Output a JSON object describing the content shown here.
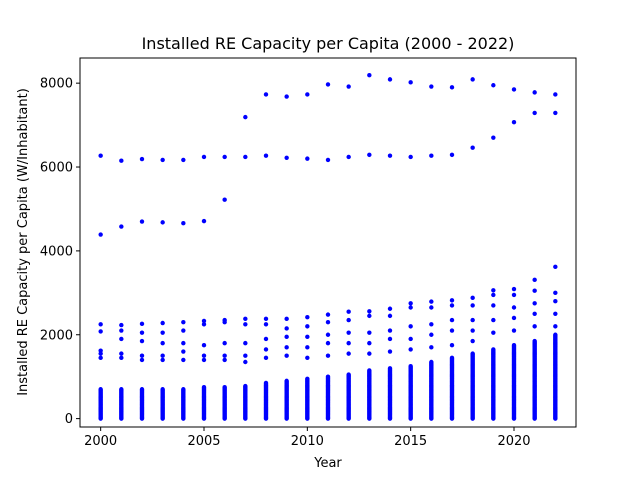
{
  "chart_data": {
    "type": "scatter",
    "title": "Installed RE Capacity per Capita (2000 - 2022)",
    "xlabel": "Year",
    "ylabel": "Installed RE Capacity per Capita (W/Inhabitant)",
    "xlim": [
      1999,
      2023
    ],
    "ylim": [
      -200,
      8600
    ],
    "xticks": [
      2000,
      2005,
      2010,
      2015,
      2020
    ],
    "yticks": [
      0,
      2000,
      4000,
      6000,
      8000
    ],
    "grid": false,
    "marker_color": "#0000ff",
    "outlier_points": [
      {
        "x": 2000,
        "y": 6270
      },
      {
        "x": 2001,
        "y": 6150
      },
      {
        "x": 2002,
        "y": 6190
      },
      {
        "x": 2003,
        "y": 6170
      },
      {
        "x": 2004,
        "y": 6170
      },
      {
        "x": 2005,
        "y": 6240
      },
      {
        "x": 2006,
        "y": 6240
      },
      {
        "x": 2007,
        "y": 6240
      },
      {
        "x": 2008,
        "y": 6270
      },
      {
        "x": 2009,
        "y": 6220
      },
      {
        "x": 2010,
        "y": 6200
      },
      {
        "x": 2011,
        "y": 6170
      },
      {
        "x": 2012,
        "y": 6240
      },
      {
        "x": 2013,
        "y": 6290
      },
      {
        "x": 2014,
        "y": 6270
      },
      {
        "x": 2015,
        "y": 6240
      },
      {
        "x": 2016,
        "y": 6270
      },
      {
        "x": 2017,
        "y": 6290
      },
      {
        "x": 2018,
        "y": 6460
      },
      {
        "x": 2019,
        "y": 6700
      },
      {
        "x": 2020,
        "y": 7070
      },
      {
        "x": 2021,
        "y": 7290
      },
      {
        "x": 2022,
        "y": 7290
      },
      {
        "x": 2000,
        "y": 4390
      },
      {
        "x": 2001,
        "y": 4580
      },
      {
        "x": 2002,
        "y": 4700
      },
      {
        "x": 2003,
        "y": 4680
      },
      {
        "x": 2004,
        "y": 4660
      },
      {
        "x": 2005,
        "y": 4710
      },
      {
        "x": 2006,
        "y": 5220
      },
      {
        "x": 2007,
        "y": 7190
      },
      {
        "x": 2008,
        "y": 7730
      },
      {
        "x": 2009,
        "y": 7680
      },
      {
        "x": 2010,
        "y": 7730
      },
      {
        "x": 2011,
        "y": 7970
      },
      {
        "x": 2012,
        "y": 7920
      },
      {
        "x": 2013,
        "y": 8190
      },
      {
        "x": 2014,
        "y": 8090
      },
      {
        "x": 2015,
        "y": 8020
      },
      {
        "x": 2016,
        "y": 7920
      },
      {
        "x": 2017,
        "y": 7900
      },
      {
        "x": 2018,
        "y": 8090
      },
      {
        "x": 2019,
        "y": 7950
      },
      {
        "x": 2020,
        "y": 7850
      },
      {
        "x": 2021,
        "y": 7780
      },
      {
        "x": 2022,
        "y": 7730
      }
    ],
    "max_per_year": [
      {
        "x": 2000,
        "y": 2250
      },
      {
        "x": 2001,
        "y": 2230
      },
      {
        "x": 2002,
        "y": 2260
      },
      {
        "x": 2003,
        "y": 2280
      },
      {
        "x": 2004,
        "y": 2300
      },
      {
        "x": 2005,
        "y": 2330
      },
      {
        "x": 2006,
        "y": 2350
      },
      {
        "x": 2007,
        "y": 2380
      },
      {
        "x": 2008,
        "y": 2380
      },
      {
        "x": 2009,
        "y": 2380
      },
      {
        "x": 2010,
        "y": 2420
      },
      {
        "x": 2011,
        "y": 2480
      },
      {
        "x": 2012,
        "y": 2550
      },
      {
        "x": 2013,
        "y": 2560
      },
      {
        "x": 2014,
        "y": 2620
      },
      {
        "x": 2015,
        "y": 2750
      },
      {
        "x": 2016,
        "y": 2790
      },
      {
        "x": 2017,
        "y": 2820
      },
      {
        "x": 2018,
        "y": 2880
      },
      {
        "x": 2019,
        "y": 3060
      },
      {
        "x": 2020,
        "y": 3090
      },
      {
        "x": 2021,
        "y": 3310
      },
      {
        "x": 2022,
        "y": 3620
      }
    ],
    "dense_cluster_top_per_year": [
      {
        "x": 2000,
        "y": 700
      },
      {
        "x": 2001,
        "y": 700
      },
      {
        "x": 2002,
        "y": 700
      },
      {
        "x": 2003,
        "y": 720
      },
      {
        "x": 2004,
        "y": 720
      },
      {
        "x": 2005,
        "y": 760
      },
      {
        "x": 2006,
        "y": 760
      },
      {
        "x": 2007,
        "y": 780
      },
      {
        "x": 2008,
        "y": 850
      },
      {
        "x": 2009,
        "y": 900
      },
      {
        "x": 2010,
        "y": 950
      },
      {
        "x": 2011,
        "y": 1000
      },
      {
        "x": 2012,
        "y": 1050
      },
      {
        "x": 2013,
        "y": 1150
      },
      {
        "x": 2014,
        "y": 1200
      },
      {
        "x": 2015,
        "y": 1250
      },
      {
        "x": 2016,
        "y": 1350
      },
      {
        "x": 2017,
        "y": 1450
      },
      {
        "x": 2018,
        "y": 1550
      },
      {
        "x": 2019,
        "y": 1650
      },
      {
        "x": 2020,
        "y": 1750
      },
      {
        "x": 2021,
        "y": 1850
      },
      {
        "x": 2022,
        "y": 2000
      }
    ],
    "mid_band_per_year": [
      {
        "x": 2000,
        "y": [
          1450,
          1550,
          1620,
          2080
        ]
      },
      {
        "x": 2001,
        "y": [
          1450,
          1550,
          1900,
          2100
        ]
      },
      {
        "x": 2002,
        "y": [
          1400,
          1500,
          1850,
          2050
        ]
      },
      {
        "x": 2003,
        "y": [
          1400,
          1500,
          1800,
          2050
        ]
      },
      {
        "x": 2004,
        "y": [
          1400,
          1600,
          1800,
          2100
        ]
      },
      {
        "x": 2005,
        "y": [
          1400,
          1500,
          1750,
          2250
        ]
      },
      {
        "x": 2006,
        "y": [
          1400,
          1500,
          1800,
          2300
        ]
      },
      {
        "x": 2007,
        "y": [
          1350,
          1500,
          1800,
          2250
        ]
      },
      {
        "x": 2008,
        "y": [
          1450,
          1650,
          1900,
          2250
        ]
      },
      {
        "x": 2009,
        "y": [
          1500,
          1700,
          1950,
          2150
        ]
      },
      {
        "x": 2010,
        "y": [
          1450,
          1700,
          1950,
          2200
        ]
      },
      {
        "x": 2011,
        "y": [
          1500,
          1800,
          2000,
          2300
        ]
      },
      {
        "x": 2012,
        "y": [
          1550,
          1800,
          2050,
          2350
        ]
      },
      {
        "x": 2013,
        "y": [
          1550,
          1800,
          2050,
          2450
        ]
      },
      {
        "x": 2014,
        "y": [
          1600,
          1900,
          2100,
          2450
        ]
      },
      {
        "x": 2015,
        "y": [
          1650,
          1900,
          2200,
          2650
        ]
      },
      {
        "x": 2016,
        "y": [
          1700,
          2000,
          2250,
          2650
        ]
      },
      {
        "x": 2017,
        "y": [
          1750,
          2100,
          2350,
          2700
        ]
      },
      {
        "x": 2018,
        "y": [
          1850,
          2100,
          2350,
          2700
        ]
      },
      {
        "x": 2019,
        "y": [
          2050,
          2350,
          2700,
          2950
        ]
      },
      {
        "x": 2020,
        "y": [
          2100,
          2400,
          2650,
          2950
        ]
      },
      {
        "x": 2021,
        "y": [
          2200,
          2500,
          2750,
          3050
        ]
      },
      {
        "x": 2022,
        "y": [
          2200,
          2500,
          2800,
          3000
        ]
      }
    ]
  }
}
